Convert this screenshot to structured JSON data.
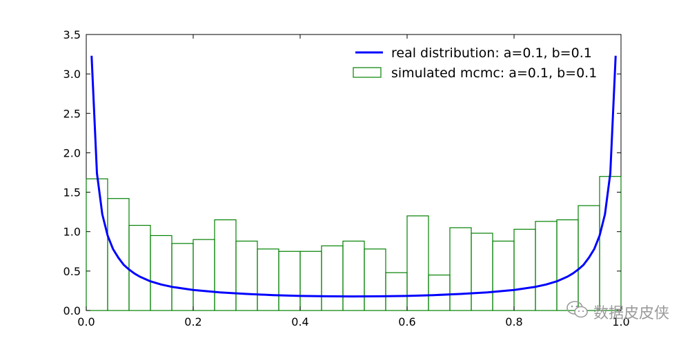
{
  "chart_data": {
    "type": "line",
    "title": "",
    "xlabel": "",
    "ylabel": "",
    "xlim": [
      0.0,
      1.0
    ],
    "ylim": [
      0.0,
      3.5
    ],
    "grid": false,
    "legend_position": "top-right",
    "x_ticks": [
      "0.0",
      "0.2",
      "0.4",
      "0.6",
      "0.8",
      "1.0"
    ],
    "y_ticks": [
      "0.0",
      "0.5",
      "1.0",
      "1.5",
      "2.0",
      "2.5",
      "3.0",
      "3.5"
    ],
    "series": [
      {
        "name": "real distribution: a=0.1, b=0.1",
        "kind": "line",
        "color": "#0000ff",
        "x": [
          0.01,
          0.02,
          0.03,
          0.04,
          0.05,
          0.06,
          0.07,
          0.08,
          0.09,
          0.1,
          0.12,
          0.14,
          0.16,
          0.18,
          0.2,
          0.25,
          0.3,
          0.35,
          0.4,
          0.45,
          0.5,
          0.55,
          0.6,
          0.65,
          0.7,
          0.75,
          0.8,
          0.82,
          0.84,
          0.86,
          0.88,
          0.9,
          0.91,
          0.92,
          0.93,
          0.94,
          0.95,
          0.96,
          0.97,
          0.98,
          0.99
        ],
        "y": [
          3.23,
          1.74,
          1.22,
          0.95,
          0.78,
          0.67,
          0.58,
          0.52,
          0.47,
          0.43,
          0.37,
          0.33,
          0.3,
          0.28,
          0.26,
          0.23,
          0.21,
          0.195,
          0.185,
          0.18,
          0.178,
          0.18,
          0.185,
          0.195,
          0.21,
          0.23,
          0.26,
          0.28,
          0.3,
          0.33,
          0.37,
          0.43,
          0.47,
          0.52,
          0.58,
          0.67,
          0.78,
          0.95,
          1.22,
          1.74,
          3.23
        ]
      },
      {
        "name": "simulated mcmc: a=0.1, b=0.1",
        "kind": "step-histogram",
        "color": "#008000",
        "bin_edges": [
          0.0,
          0.04,
          0.08,
          0.12,
          0.16,
          0.2,
          0.24,
          0.28,
          0.32,
          0.36,
          0.4,
          0.44,
          0.48,
          0.52,
          0.56,
          0.6,
          0.64,
          0.68,
          0.72,
          0.76,
          0.8,
          0.84,
          0.88,
          0.92,
          0.96,
          1.0
        ],
        "values": [
          1.67,
          1.42,
          1.08,
          0.95,
          0.85,
          0.9,
          1.15,
          0.88,
          0.78,
          0.75,
          0.75,
          0.82,
          0.88,
          0.78,
          0.48,
          1.2,
          0.45,
          1.05,
          0.98,
          0.88,
          1.03,
          1.13,
          1.15,
          1.33,
          1.7
        ]
      }
    ]
  },
  "watermark": {
    "text": "数据皮皮侠",
    "icon": "wechat-icon"
  }
}
